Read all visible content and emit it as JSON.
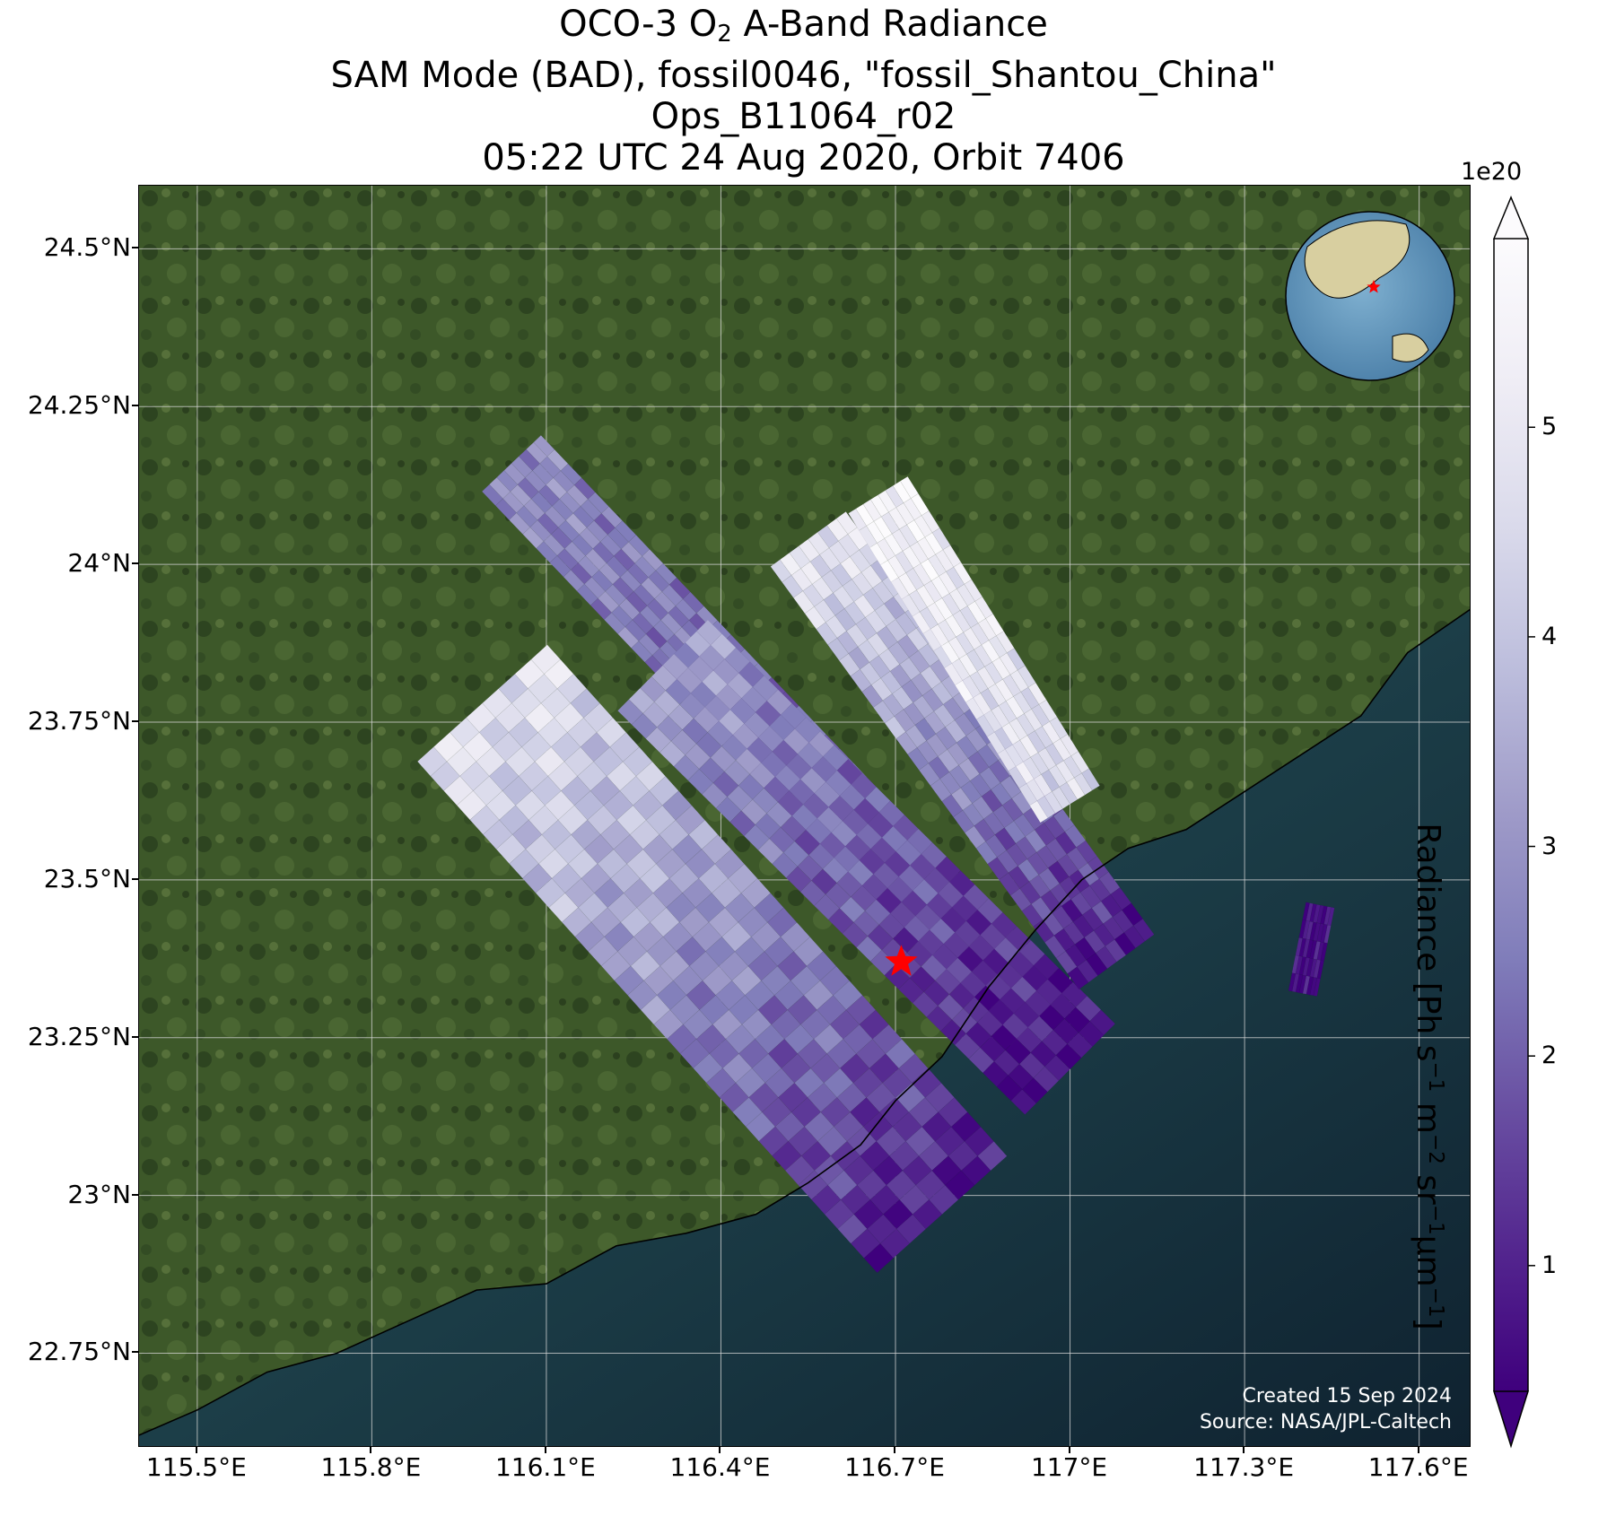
{
  "title": {
    "line1_pre": "OCO-3 O",
    "line1_sub": "2",
    "line1_post": " A-Band Radiance",
    "line2": "SAM Mode (BAD), fossil0046, \"fossil_Shantou_China\"",
    "line3": "Ops_B11064_r02",
    "line4": "05:22 UTC 24 Aug 2020, Orbit 7406"
  },
  "map": {
    "lon_range": [
      115.4,
      117.69
    ],
    "lat_range": [
      22.6,
      24.6
    ],
    "lon_ticks": [
      "115.5°E",
      "115.8°E",
      "116.1°E",
      "116.4°E",
      "116.7°E",
      "117°E",
      "117.3°E",
      "117.6°E"
    ],
    "lat_ticks": [
      "24.5°N",
      "24.25°N",
      "24°N",
      "23.75°N",
      "23.5°N",
      "23.25°N",
      "23°N",
      "22.75°N"
    ],
    "lon_tick_values": [
      115.5,
      115.8,
      116.1,
      116.4,
      116.7,
      117.0,
      117.3,
      117.6
    ],
    "lat_tick_values": [
      24.5,
      24.25,
      24.0,
      23.75,
      23.5,
      23.25,
      23.0,
      22.75
    ],
    "target_marker": {
      "name": "fossil_Shantou_China",
      "lon": 116.71,
      "lat": 23.37,
      "color": "#ff0000"
    },
    "land_color": "#3f5a2a",
    "sea_color": "#0f2230",
    "coast_color": "#000000",
    "grid_color": "#d9d9d9"
  },
  "credits": {
    "line1": "Created 15 Sep 2024",
    "line2": "Source: NASA/JPL-Caltech"
  },
  "colorbar": {
    "exponent": "1e20",
    "label_main": "Radiance [Ph s",
    "label_tick_values": [
      1,
      2,
      3,
      4,
      5
    ],
    "range": [
      0.4,
      5.9
    ],
    "colormap": "Purples_r",
    "colors": [
      "#3f007d",
      "#54278f",
      "#6a51a3",
      "#807dba",
      "#9e9ac8",
      "#bcbddc",
      "#dadaeb",
      "#efedf5",
      "#fcfbfd"
    ]
  },
  "swaths": [
    {
      "name": "swath-1",
      "center_start": [
        116.04,
        24.16
      ],
      "center_end": [
        116.95,
        23.28
      ],
      "half_width": 0.07,
      "value_start": 2.8,
      "value_end": 1.6
    },
    {
      "name": "swath-2",
      "center_start": [
        115.99,
        23.78
      ],
      "center_end": [
        116.78,
        22.97
      ],
      "half_width": 0.15,
      "value_start": 4.8,
      "value_end": 0.8
    },
    {
      "name": "swath-3",
      "center_start": [
        116.3,
        23.84
      ],
      "center_end": [
        117.0,
        23.2
      ],
      "half_width": 0.11,
      "value_start": 3.2,
      "value_end": 0.6
    },
    {
      "name": "swath-4",
      "center_start": [
        116.55,
        24.04
      ],
      "center_end": [
        117.08,
        23.37
      ],
      "half_width": 0.08,
      "value_start": 4.9,
      "value_end": 0.7
    },
    {
      "name": "swath-5",
      "center_start": [
        116.67,
        24.11
      ],
      "center_end": [
        117.0,
        23.62
      ],
      "half_width": 0.06,
      "value_start": 5.5,
      "value_end": 4.5
    },
    {
      "name": "swath-6",
      "center_start": [
        117.43,
        23.46
      ],
      "center_end": [
        117.4,
        23.32
      ],
      "half_width": 0.025,
      "value_start": 0.6,
      "value_end": 0.6
    }
  ]
}
